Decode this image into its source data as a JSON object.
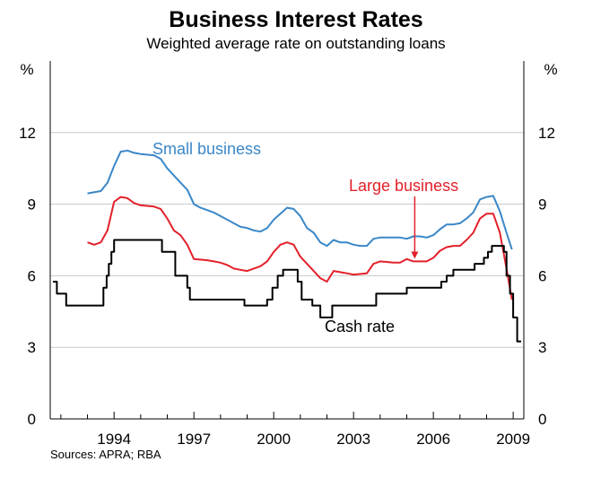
{
  "chart_data": {
    "type": "line",
    "title": "Business Interest Rates",
    "subtitle": "Weighted average rate on outstanding loans",
    "unit_left": "%",
    "unit_right": "%",
    "source": "Sources: APRA; RBA",
    "xlim": [
      1991.6,
      2009.4
    ],
    "ylim": [
      0,
      15
    ],
    "yticks": [
      0,
      3,
      6,
      9,
      12
    ],
    "ytick_labels": [
      "0",
      "3",
      "6",
      "9",
      "12"
    ],
    "xticks": [
      1994,
      1997,
      2000,
      2003,
      2006,
      2009
    ],
    "xtick_labels": [
      "1994",
      "1997",
      "2000",
      "2003",
      "2006",
      "2009"
    ],
    "grid": true,
    "colors": {
      "small_business": "#3a87c8",
      "large_business": "#e3202a",
      "cash_rate": "#000000",
      "grid": "#c8c8c8",
      "axis": "#000000"
    },
    "annotations": {
      "small_business": "Small business",
      "large_business": "Large business",
      "cash_rate": "Cash rate"
    },
    "series": [
      {
        "name": "Small business",
        "key": "small_business",
        "step": false,
        "points": [
          [
            1993.0,
            9.45
          ],
          [
            1993.5,
            9.55
          ],
          [
            1993.75,
            9.9
          ],
          [
            1994.0,
            10.6
          ],
          [
            1994.25,
            11.2
          ],
          [
            1994.5,
            11.25
          ],
          [
            1994.75,
            11.15
          ],
          [
            1995.0,
            11.1
          ],
          [
            1995.5,
            11.05
          ],
          [
            1995.75,
            10.9
          ],
          [
            1996.0,
            10.5
          ],
          [
            1996.25,
            10.2
          ],
          [
            1996.5,
            9.9
          ],
          [
            1996.75,
            9.6
          ],
          [
            1997.0,
            9.0
          ],
          [
            1997.25,
            8.85
          ],
          [
            1997.5,
            8.75
          ],
          [
            1997.75,
            8.65
          ],
          [
            1998.0,
            8.5
          ],
          [
            1998.25,
            8.35
          ],
          [
            1998.5,
            8.2
          ],
          [
            1998.75,
            8.05
          ],
          [
            1999.0,
            8.0
          ],
          [
            1999.25,
            7.9
          ],
          [
            1999.5,
            7.85
          ],
          [
            1999.75,
            8.0
          ],
          [
            2000.0,
            8.35
          ],
          [
            2000.25,
            8.6
          ],
          [
            2000.5,
            8.85
          ],
          [
            2000.75,
            8.8
          ],
          [
            2001.0,
            8.5
          ],
          [
            2001.25,
            8.0
          ],
          [
            2001.5,
            7.8
          ],
          [
            2001.75,
            7.4
          ],
          [
            2002.0,
            7.25
          ],
          [
            2002.25,
            7.5
          ],
          [
            2002.5,
            7.4
          ],
          [
            2002.75,
            7.4
          ],
          [
            2003.0,
            7.3
          ],
          [
            2003.25,
            7.25
          ],
          [
            2003.5,
            7.25
          ],
          [
            2003.75,
            7.55
          ],
          [
            2004.0,
            7.6
          ],
          [
            2004.5,
            7.6
          ],
          [
            2004.75,
            7.6
          ],
          [
            2005.0,
            7.55
          ],
          [
            2005.25,
            7.65
          ],
          [
            2005.5,
            7.65
          ],
          [
            2005.75,
            7.6
          ],
          [
            2006.0,
            7.7
          ],
          [
            2006.25,
            7.95
          ],
          [
            2006.5,
            8.15
          ],
          [
            2006.75,
            8.15
          ],
          [
            2007.0,
            8.2
          ],
          [
            2007.25,
            8.4
          ],
          [
            2007.5,
            8.65
          ],
          [
            2007.75,
            9.2
          ],
          [
            2008.0,
            9.3
          ],
          [
            2008.25,
            9.35
          ],
          [
            2008.5,
            8.7
          ],
          [
            2008.75,
            7.8
          ],
          [
            2008.95,
            7.1
          ]
        ]
      },
      {
        "name": "Large business",
        "key": "large_business",
        "step": false,
        "points": [
          [
            1993.0,
            7.4
          ],
          [
            1993.25,
            7.3
          ],
          [
            1993.5,
            7.4
          ],
          [
            1993.75,
            7.9
          ],
          [
            1994.0,
            9.1
          ],
          [
            1994.25,
            9.3
          ],
          [
            1994.5,
            9.25
          ],
          [
            1994.75,
            9.05
          ],
          [
            1995.0,
            8.95
          ],
          [
            1995.5,
            8.9
          ],
          [
            1995.75,
            8.8
          ],
          [
            1996.0,
            8.4
          ],
          [
            1996.25,
            7.9
          ],
          [
            1996.5,
            7.7
          ],
          [
            1996.75,
            7.3
          ],
          [
            1997.0,
            6.7
          ],
          [
            1997.5,
            6.65
          ],
          [
            1997.75,
            6.6
          ],
          [
            1998.0,
            6.55
          ],
          [
            1998.25,
            6.45
          ],
          [
            1998.5,
            6.3
          ],
          [
            1998.75,
            6.25
          ],
          [
            1999.0,
            6.2
          ],
          [
            1999.25,
            6.3
          ],
          [
            1999.5,
            6.4
          ],
          [
            1999.75,
            6.6
          ],
          [
            2000.0,
            7.0
          ],
          [
            2000.25,
            7.3
          ],
          [
            2000.5,
            7.4
          ],
          [
            2000.75,
            7.3
          ],
          [
            2001.0,
            6.8
          ],
          [
            2001.25,
            6.5
          ],
          [
            2001.5,
            6.2
          ],
          [
            2001.75,
            5.9
          ],
          [
            2002.0,
            5.75
          ],
          [
            2002.25,
            6.2
          ],
          [
            2002.5,
            6.15
          ],
          [
            2002.75,
            6.1
          ],
          [
            2003.0,
            6.05
          ],
          [
            2003.5,
            6.1
          ],
          [
            2003.75,
            6.5
          ],
          [
            2004.0,
            6.6
          ],
          [
            2004.5,
            6.55
          ],
          [
            2004.75,
            6.55
          ],
          [
            2005.0,
            6.7
          ],
          [
            2005.25,
            6.6
          ],
          [
            2005.75,
            6.6
          ],
          [
            2006.0,
            6.75
          ],
          [
            2006.25,
            7.05
          ],
          [
            2006.5,
            7.2
          ],
          [
            2006.75,
            7.25
          ],
          [
            2007.0,
            7.25
          ],
          [
            2007.25,
            7.5
          ],
          [
            2007.5,
            7.8
          ],
          [
            2007.75,
            8.4
          ],
          [
            2008.0,
            8.6
          ],
          [
            2008.25,
            8.6
          ],
          [
            2008.5,
            7.8
          ],
          [
            2008.75,
            6.3
          ],
          [
            2008.95,
            5.0
          ]
        ]
      },
      {
        "name": "Cash rate",
        "key": "cash_rate",
        "step": true,
        "points": [
          [
            1991.7,
            5.75
          ],
          [
            1991.85,
            5.25
          ],
          [
            1992.2,
            4.75
          ],
          [
            1993.6,
            5.5
          ],
          [
            1993.72,
            6.0
          ],
          [
            1993.8,
            6.5
          ],
          [
            1993.9,
            7.0
          ],
          [
            1994.0,
            7.5
          ],
          [
            1995.8,
            7.0
          ],
          [
            1996.3,
            6.0
          ],
          [
            1996.75,
            5.5
          ],
          [
            1996.85,
            5.0
          ],
          [
            1998.9,
            4.75
          ],
          [
            1999.75,
            5.0
          ],
          [
            1999.95,
            5.5
          ],
          [
            2000.15,
            6.0
          ],
          [
            2000.35,
            6.25
          ],
          [
            2000.9,
            5.75
          ],
          [
            2001.05,
            5.0
          ],
          [
            2001.45,
            4.75
          ],
          [
            2001.75,
            4.25
          ],
          [
            2002.2,
            4.75
          ],
          [
            2003.85,
            5.25
          ],
          [
            2005.0,
            5.5
          ],
          [
            2006.3,
            5.75
          ],
          [
            2006.5,
            6.0
          ],
          [
            2006.75,
            6.25
          ],
          [
            2007.55,
            6.5
          ],
          [
            2007.9,
            6.75
          ],
          [
            2008.05,
            7.0
          ],
          [
            2008.2,
            7.25
          ],
          [
            2008.65,
            7.0
          ],
          [
            2008.75,
            6.0
          ],
          [
            2008.88,
            5.25
          ],
          [
            2009.0,
            4.25
          ],
          [
            2009.15,
            3.25
          ],
          [
            2009.3,
            3.25
          ]
        ]
      }
    ]
  }
}
